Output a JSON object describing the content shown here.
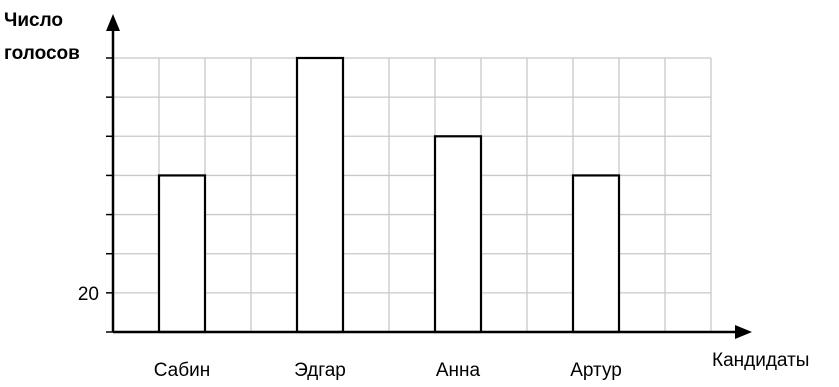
{
  "chart_data": {
    "type": "bar",
    "ylabel_lines": [
      "Число",
      "голосов"
    ],
    "xlabel": "Кандидаты",
    "categories": [
      "Сабин",
      "Эдгар",
      "Анна",
      "Артур"
    ],
    "values": [
      26,
      32,
      28,
      26
    ],
    "ytick_labels": [
      {
        "value": 20,
        "label": "20"
      }
    ],
    "ylim": [
      18,
      32
    ],
    "grid": true,
    "grid_step": 2,
    "bar_fill": "#ffffff",
    "bar_stroke": "#000000",
    "grid_color": "#c8c8c8"
  }
}
